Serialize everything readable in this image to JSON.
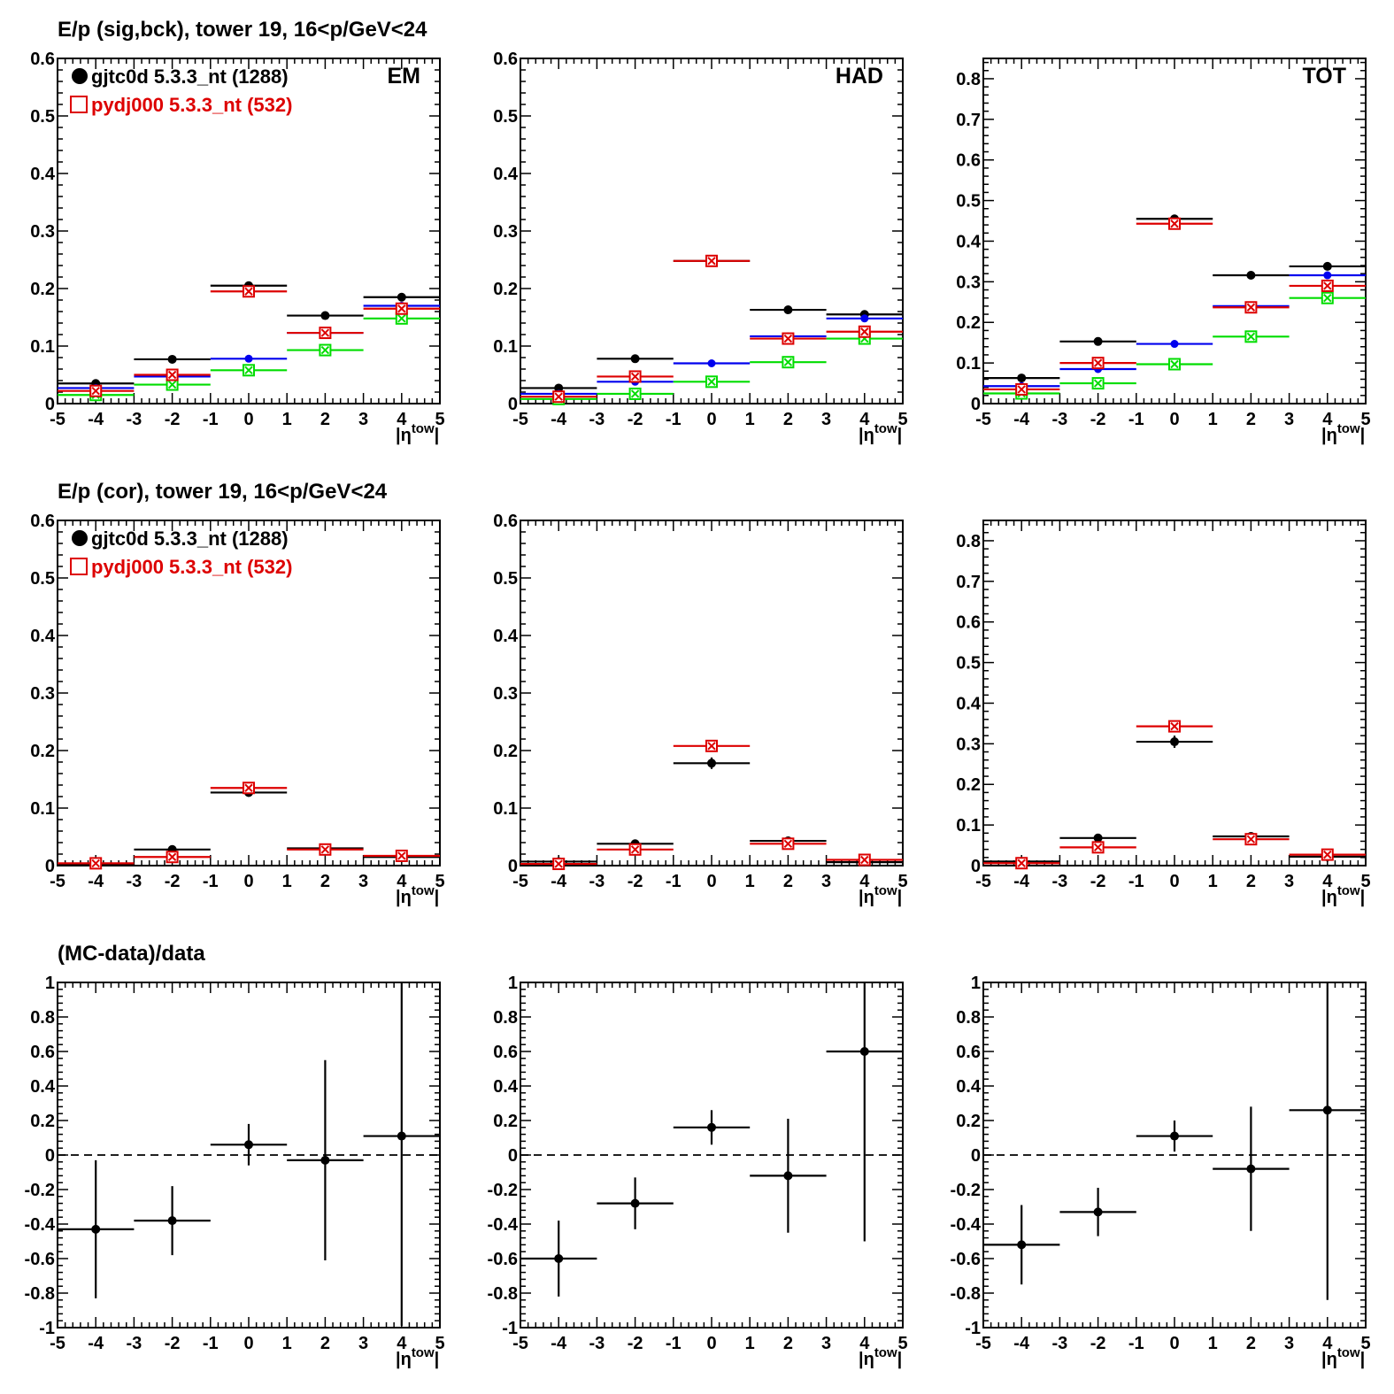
{
  "row_titles": [
    "E/p (sig,bck), tower 19, 16<p/GeV<24",
    "E/p (cor), tower 19, 16<p/GeV<24",
    "(MC-data)/data"
  ],
  "legend": {
    "entries": [
      {
        "label": "gjtc0d 5.3.3_nt (1288)",
        "color": "#000000",
        "marker": "filled-circle"
      },
      {
        "label": "pydj000 5.3.3_nt (532)",
        "color": "#dd0000",
        "marker": "open-square"
      }
    ]
  },
  "colors": {
    "data": "#000000",
    "mc": "#dd0000",
    "blue": "#0000ee",
    "green": "#00dd00",
    "ref_line": "#000000"
  },
  "chart_data": [
    {
      "type": "scatter",
      "panel": "EM",
      "row": 0,
      "col": 0,
      "panel_label": "EM",
      "xlabel": "|η^tow|",
      "xlim": [
        -5,
        5
      ],
      "ylim": [
        0,
        0.6
      ],
      "xticks": [
        "-5",
        "-4",
        "-3",
        "-2",
        "-1",
        "0",
        "1",
        "2",
        "3",
        "4",
        "5"
      ],
      "yticks": [
        "0",
        "0.1",
        "0.2",
        "0.3",
        "0.4",
        "0.5",
        "0.6"
      ],
      "show_legend": true,
      "series": [
        {
          "name": "gjtc0d 5.3.3_nt (1288)",
          "color": "#000000",
          "marker": "dot",
          "x": [
            -4,
            -2,
            0,
            2,
            4
          ],
          "y": [
            0.035,
            0.077,
            0.205,
            0.153,
            0.185
          ],
          "yerr": [
            0.003,
            0.003,
            0.005,
            0.004,
            0.005
          ]
        },
        {
          "color": "#0000ee",
          "marker": "smalldot",
          "x": [
            -4,
            -2,
            0,
            2,
            4
          ],
          "y": [
            0.027,
            0.047,
            0.078,
            0.123,
            0.17
          ],
          "yerr": [
            0.002,
            0.002,
            0.003,
            0.004,
            0.005
          ]
        },
        {
          "color": "#00dd00",
          "marker": "xsquare",
          "x": [
            -4,
            -2,
            0,
            2,
            4
          ],
          "y": [
            0.015,
            0.033,
            0.058,
            0.093,
            0.148
          ],
          "yerr": [
            0.002,
            0.002,
            0.003,
            0.004,
            0.005
          ]
        },
        {
          "name": "pydj000 5.3.3_nt (532)",
          "color": "#dd0000",
          "marker": "xsquare",
          "x": [
            -4,
            -2,
            0,
            2,
            4
          ],
          "y": [
            0.022,
            0.05,
            0.195,
            0.123,
            0.165
          ],
          "yerr": [
            0.003,
            0.004,
            0.007,
            0.006,
            0.008
          ]
        }
      ]
    },
    {
      "type": "scatter",
      "panel": "HAD",
      "row": 0,
      "col": 1,
      "panel_label": "HAD",
      "xlabel": "|η^tow|",
      "xlim": [
        -5,
        5
      ],
      "ylim": [
        0,
        0.6
      ],
      "xticks": [
        "-5",
        "-4",
        "-3",
        "-2",
        "-1",
        "0",
        "1",
        "2",
        "3",
        "4",
        "5"
      ],
      "yticks": [
        "0",
        "0.1",
        "0.2",
        "0.3",
        "0.4",
        "0.5",
        "0.6"
      ],
      "show_legend": false,
      "series": [
        {
          "name": "gjtc0d 5.3.3_nt (1288)",
          "color": "#000000",
          "marker": "dot",
          "x": [
            -4,
            -2,
            0,
            2,
            4
          ],
          "y": [
            0.027,
            0.078,
            0.248,
            0.163,
            0.155
          ],
          "yerr": [
            0.003,
            0.003,
            0.008,
            0.004,
            0.004
          ]
        },
        {
          "color": "#0000ee",
          "marker": "smalldot",
          "x": [
            -4,
            -2,
            0,
            2,
            4
          ],
          "y": [
            0.017,
            0.038,
            0.07,
            0.117,
            0.148
          ],
          "yerr": [
            0.002,
            0.002,
            0.003,
            0.004,
            0.005
          ]
        },
        {
          "color": "#00dd00",
          "marker": "xsquare",
          "x": [
            -4,
            -2,
            0,
            2,
            4
          ],
          "y": [
            0.008,
            0.017,
            0.038,
            0.072,
            0.113
          ],
          "yerr": [
            0.002,
            0.002,
            0.003,
            0.004,
            0.005
          ]
        },
        {
          "name": "pydj000 5.3.3_nt (532)",
          "color": "#dd0000",
          "marker": "xsquare",
          "x": [
            -4,
            -2,
            0,
            2,
            4
          ],
          "y": [
            0.012,
            0.047,
            0.248,
            0.113,
            0.125
          ],
          "yerr": [
            0.003,
            0.004,
            0.008,
            0.006,
            0.008
          ]
        }
      ]
    },
    {
      "type": "scatter",
      "panel": "TOT",
      "row": 0,
      "col": 2,
      "panel_label": "TOT",
      "xlabel": "|η^tow|",
      "xlim": [
        -5,
        5
      ],
      "ylim": [
        0,
        0.85
      ],
      "xticks": [
        "-5",
        "-4",
        "-3",
        "-2",
        "-1",
        "0",
        "1",
        "2",
        "3",
        "4",
        "5"
      ],
      "yticks": [
        "0",
        "0.1",
        "0.2",
        "0.3",
        "0.4",
        "0.5",
        "0.6",
        "0.7",
        "0.8"
      ],
      "show_legend": false,
      "series": [
        {
          "name": "gjtc0d 5.3.3_nt (1288)",
          "color": "#000000",
          "marker": "dot",
          "x": [
            -4,
            -2,
            0,
            2,
            4
          ],
          "y": [
            0.063,
            0.153,
            0.455,
            0.316,
            0.338
          ],
          "yerr": [
            0.004,
            0.004,
            0.008,
            0.005,
            0.006
          ]
        },
        {
          "color": "#0000ee",
          "marker": "smalldot",
          "x": [
            -4,
            -2,
            0,
            2,
            4
          ],
          "y": [
            0.043,
            0.085,
            0.147,
            0.24,
            0.316
          ],
          "yerr": [
            0.003,
            0.003,
            0.004,
            0.005,
            0.006
          ]
        },
        {
          "color": "#00dd00",
          "marker": "xsquare",
          "x": [
            -4,
            -2,
            0,
            2,
            4
          ],
          "y": [
            0.025,
            0.05,
            0.097,
            0.165,
            0.26
          ],
          "yerr": [
            0.003,
            0.003,
            0.004,
            0.005,
            0.007
          ]
        },
        {
          "name": "pydj000 5.3.3_nt (532)",
          "color": "#dd0000",
          "marker": "xsquare",
          "x": [
            -4,
            -2,
            0,
            2,
            4
          ],
          "y": [
            0.035,
            0.1,
            0.443,
            0.237,
            0.29
          ],
          "yerr": [
            0.004,
            0.005,
            0.01,
            0.008,
            0.01
          ]
        }
      ]
    },
    {
      "type": "scatter",
      "panel": "EM-cor",
      "row": 1,
      "col": 0,
      "panel_label": "",
      "xlabel": "|η^tow|",
      "xlim": [
        -5,
        5
      ],
      "ylim": [
        0,
        0.6
      ],
      "xticks": [
        "-5",
        "-4",
        "-3",
        "-2",
        "-1",
        "0",
        "1",
        "2",
        "3",
        "4",
        "5"
      ],
      "yticks": [
        "0",
        "0.1",
        "0.2",
        "0.3",
        "0.4",
        "0.5",
        "0.6"
      ],
      "show_legend": true,
      "series": [
        {
          "name": "gjtc0d 5.3.3_nt (1288)",
          "color": "#000000",
          "marker": "dot",
          "x": [
            -4,
            -2,
            0,
            2,
            4
          ],
          "y": [
            0.003,
            0.028,
            0.127,
            0.03,
            0.015
          ],
          "yerr": [
            0.006,
            0.004,
            0.007,
            0.006,
            0.008
          ]
        },
        {
          "name": "pydj000 5.3.3_nt (532)",
          "color": "#dd0000",
          "marker": "xsquare",
          "x": [
            -4,
            -2,
            0,
            2,
            4
          ],
          "y": [
            0.004,
            0.015,
            0.135,
            0.028,
            0.017
          ],
          "yerr": [
            0.004,
            0.005,
            0.006,
            0.007,
            0.009
          ]
        }
      ]
    },
    {
      "type": "scatter",
      "panel": "HAD-cor",
      "row": 1,
      "col": 1,
      "panel_label": "",
      "xlabel": "|η^tow|",
      "xlim": [
        -5,
        5
      ],
      "ylim": [
        0,
        0.6
      ],
      "xticks": [
        "-5",
        "-4",
        "-3",
        "-2",
        "-1",
        "0",
        "1",
        "2",
        "3",
        "4",
        "5"
      ],
      "yticks": [
        "0",
        "0.1",
        "0.2",
        "0.3",
        "0.4",
        "0.5",
        "0.6"
      ],
      "show_legend": false,
      "series": [
        {
          "name": "gjtc0d 5.3.3_nt (1288)",
          "color": "#000000",
          "marker": "dot",
          "x": [
            -4,
            -2,
            0,
            2,
            4
          ],
          "y": [
            0.007,
            0.038,
            0.178,
            0.043,
            0.006
          ],
          "yerr": [
            0.005,
            0.004,
            0.01,
            0.005,
            0.008
          ]
        },
        {
          "name": "pydj000 5.3.3_nt (532)",
          "color": "#dd0000",
          "marker": "xsquare",
          "x": [
            -4,
            -2,
            0,
            2,
            4
          ],
          "y": [
            0.003,
            0.028,
            0.208,
            0.038,
            0.01
          ],
          "yerr": [
            0.004,
            0.005,
            0.01,
            0.006,
            0.01
          ]
        }
      ]
    },
    {
      "type": "scatter",
      "panel": "TOT-cor",
      "row": 1,
      "col": 2,
      "panel_label": "",
      "xlabel": "|η^tow|",
      "xlim": [
        -5,
        5
      ],
      "ylim": [
        0,
        0.85
      ],
      "xticks": [
        "-5",
        "-4",
        "-3",
        "-2",
        "-1",
        "0",
        "1",
        "2",
        "3",
        "4",
        "5"
      ],
      "yticks": [
        "0",
        "0.1",
        "0.2",
        "0.3",
        "0.4",
        "0.5",
        "0.6",
        "0.7",
        "0.8"
      ],
      "show_legend": false,
      "series": [
        {
          "name": "gjtc0d 5.3.3_nt (1288)",
          "color": "#000000",
          "marker": "dot",
          "x": [
            -4,
            -2,
            0,
            2,
            4
          ],
          "y": [
            0.01,
            0.068,
            0.305,
            0.072,
            0.022
          ],
          "yerr": [
            0.007,
            0.006,
            0.015,
            0.008,
            0.012
          ]
        },
        {
          "name": "pydj000 5.3.3_nt (532)",
          "color": "#dd0000",
          "marker": "xsquare",
          "x": [
            -4,
            -2,
            0,
            2,
            4
          ],
          "y": [
            0.006,
            0.045,
            0.343,
            0.065,
            0.027
          ],
          "yerr": [
            0.005,
            0.007,
            0.012,
            0.01,
            0.014
          ]
        }
      ]
    },
    {
      "type": "scatter",
      "panel": "EM-ratio",
      "row": 2,
      "col": 0,
      "panel_label": "",
      "xlabel": "|η^tow|",
      "xlim": [
        -5,
        5
      ],
      "ylim": [
        -1,
        1
      ],
      "ref_line": 0,
      "xticks": [
        "-5",
        "-4",
        "-3",
        "-2",
        "-1",
        "0",
        "1",
        "2",
        "3",
        "4",
        "5"
      ],
      "yticks": [
        "-1",
        "-0.8",
        "-0.6",
        "-0.4",
        "-0.2",
        "0",
        "0.2",
        "0.4",
        "0.6",
        "0.8",
        "1"
      ],
      "show_legend": false,
      "series": [
        {
          "color": "#000000",
          "marker": "dot",
          "x": [
            -4,
            -2,
            0,
            2,
            4
          ],
          "y": [
            -0.43,
            -0.38,
            0.06,
            -0.03,
            0.11
          ],
          "yerr": [
            0.4,
            0.2,
            0.12,
            0.58,
            1.1
          ]
        }
      ]
    },
    {
      "type": "scatter",
      "panel": "HAD-ratio",
      "row": 2,
      "col": 1,
      "panel_label": "",
      "xlabel": "|η^tow|",
      "xlim": [
        -5,
        5
      ],
      "ylim": [
        -1,
        1
      ],
      "ref_line": 0,
      "xticks": [
        "-5",
        "-4",
        "-3",
        "-2",
        "-1",
        "0",
        "1",
        "2",
        "3",
        "4",
        "5"
      ],
      "yticks": [
        "-1",
        "-0.8",
        "-0.6",
        "-0.4",
        "-0.2",
        "0",
        "0.2",
        "0.4",
        "0.6",
        "0.8",
        "1"
      ],
      "show_legend": false,
      "series": [
        {
          "color": "#000000",
          "marker": "dot",
          "x": [
            -4,
            -2,
            0,
            2,
            4
          ],
          "y": [
            -0.6,
            -0.28,
            0.16,
            -0.12,
            0.6
          ],
          "yerr": [
            0.22,
            0.15,
            0.1,
            0.33,
            1.1
          ]
        }
      ]
    },
    {
      "type": "scatter",
      "panel": "TOT-ratio",
      "row": 2,
      "col": 2,
      "panel_label": "",
      "xlabel": "|η^tow|",
      "xlim": [
        -5,
        5
      ],
      "ylim": [
        -1,
        1
      ],
      "ref_line": 0,
      "xticks": [
        "-5",
        "-4",
        "-3",
        "-2",
        "-1",
        "0",
        "1",
        "2",
        "3",
        "4",
        "5"
      ],
      "yticks": [
        "-1",
        "-0.8",
        "-0.6",
        "-0.4",
        "-0.2",
        "0",
        "0.2",
        "0.4",
        "0.6",
        "0.8",
        "1"
      ],
      "show_legend": false,
      "series": [
        {
          "color": "#000000",
          "marker": "dot",
          "x": [
            -4,
            -2,
            0,
            2,
            4
          ],
          "y": [
            -0.52,
            -0.33,
            0.11,
            -0.08,
            0.26
          ],
          "yerr": [
            0.23,
            0.14,
            0.09,
            0.36,
            1.1
          ]
        }
      ]
    }
  ]
}
